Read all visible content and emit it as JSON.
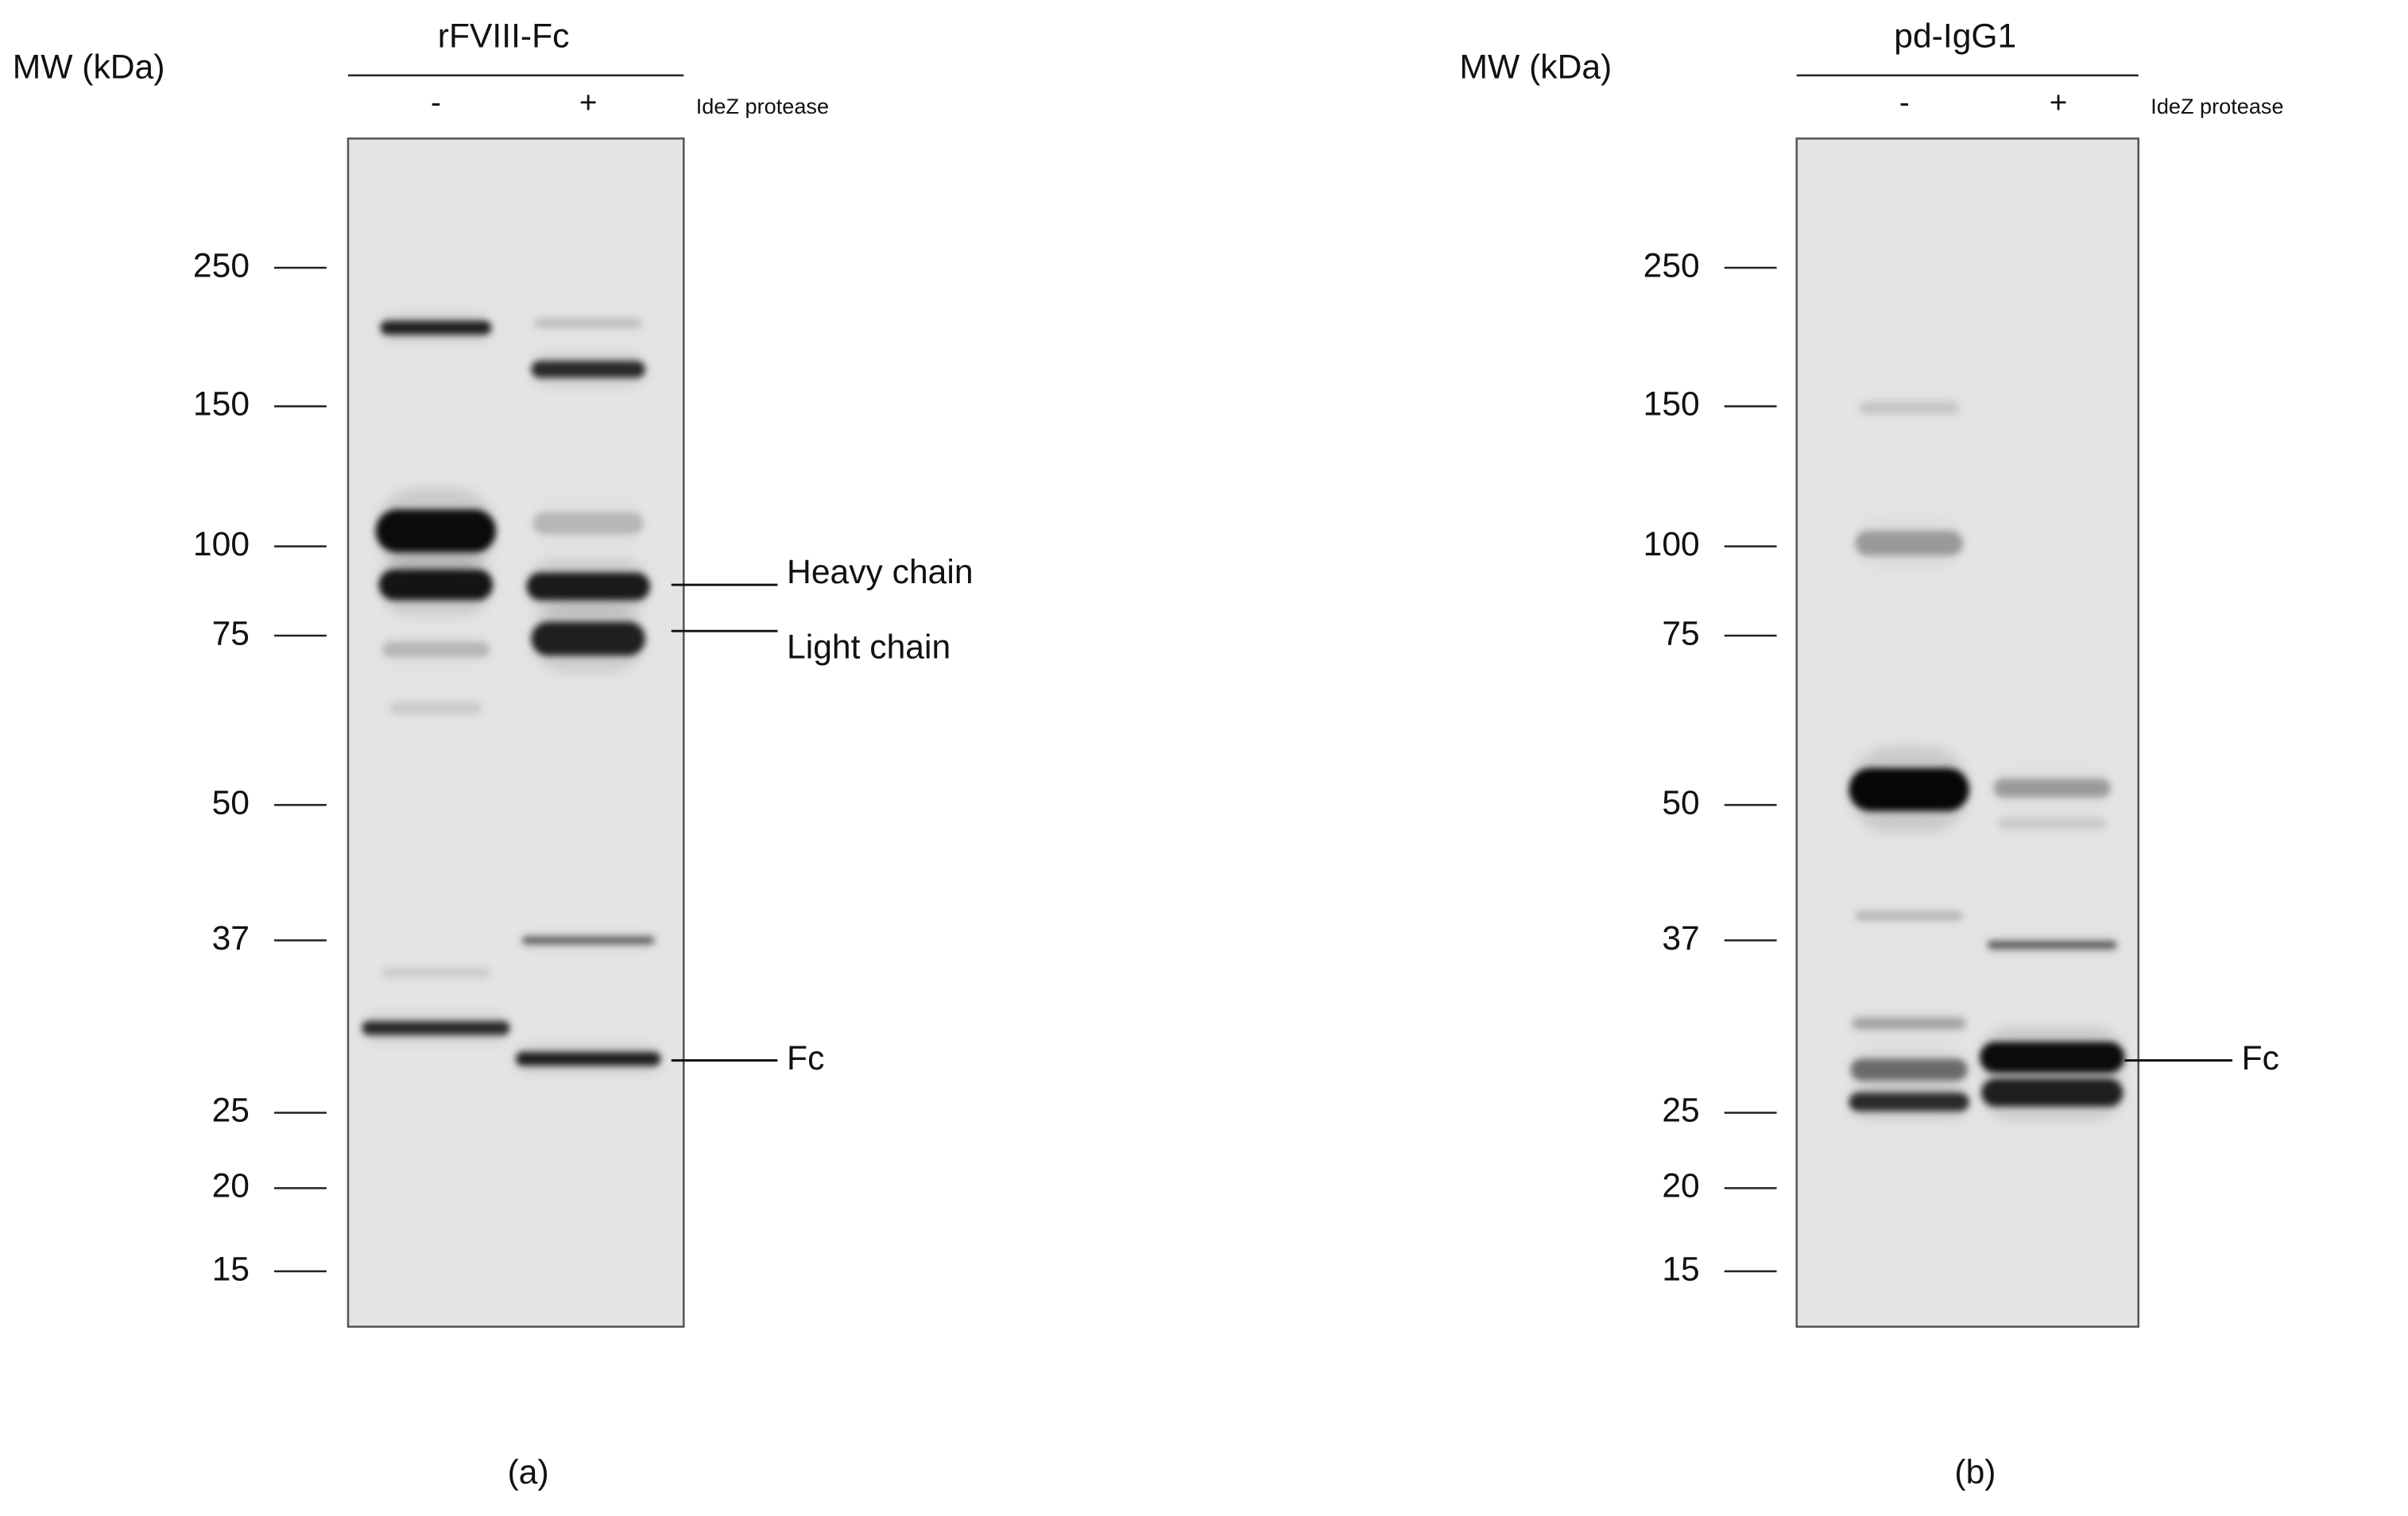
{
  "panels": [
    {
      "mw_label": "MW (kDa)",
      "sample": "rFVIII-Fc",
      "lanes": [
        "-",
        "+"
      ],
      "treatment": "IdeZ protease",
      "markers": [
        "250",
        "150",
        "100",
        "75",
        "50",
        "37",
        "25",
        "20",
        "15"
      ],
      "annotations": [
        "Heavy chain",
        "Light chain",
        "Fc"
      ],
      "caption": "(a)"
    },
    {
      "mw_label": "MW (kDa)",
      "sample": "pd-IgG1",
      "lanes": [
        "-",
        "+"
      ],
      "treatment": "IdeZ protease",
      "markers": [
        "250",
        "150",
        "100",
        "75",
        "50",
        "37",
        "25",
        "20",
        "15"
      ],
      "annotations": [
        "Fc"
      ],
      "caption": "(b)"
    }
  ]
}
